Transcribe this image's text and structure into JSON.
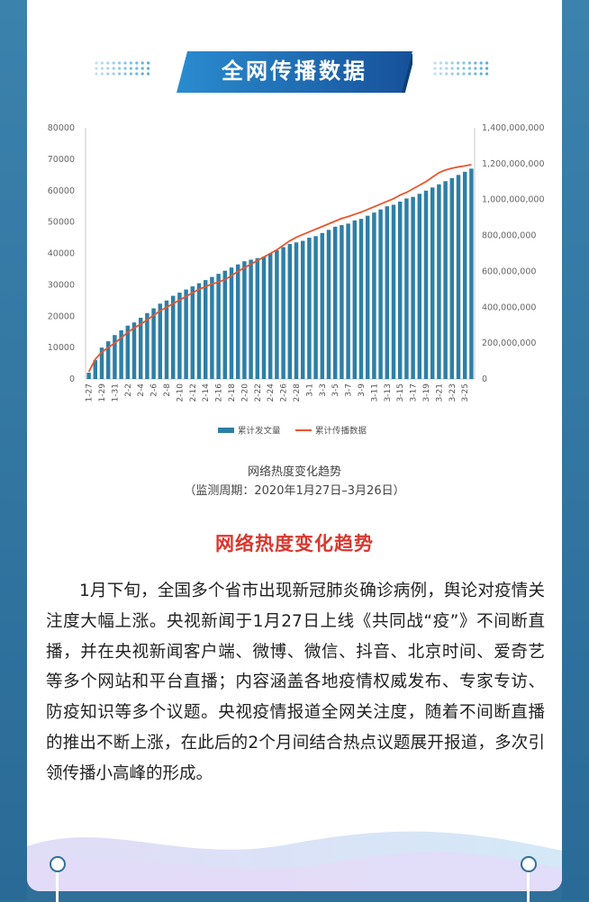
{
  "title": "全网传播数据",
  "chart_data": {
    "type": "bar+line",
    "categories": [
      "1-27",
      "1-28",
      "1-29",
      "1-30",
      "1-31",
      "2-1",
      "2-2",
      "2-3",
      "2-4",
      "2-5",
      "2-6",
      "2-7",
      "2-8",
      "2-9",
      "2-10",
      "2-11",
      "2-12",
      "2-13",
      "2-14",
      "2-15",
      "2-16",
      "2-17",
      "2-18",
      "2-19",
      "2-20",
      "2-21",
      "2-22",
      "2-23",
      "2-24",
      "2-25",
      "2-26",
      "2-27",
      "2-28",
      "2-29",
      "3-1",
      "3-2",
      "3-3",
      "3-4",
      "3-5",
      "3-6",
      "3-7",
      "3-8",
      "3-9",
      "3-10",
      "3-11",
      "3-12",
      "3-13",
      "3-14",
      "3-15",
      "3-16",
      "3-17",
      "3-18",
      "3-19",
      "3-20",
      "3-21",
      "3-22",
      "3-23",
      "3-24",
      "3-25",
      "3-26"
    ],
    "tick_labels": [
      "1-27",
      "1-29",
      "1-31",
      "2-2",
      "2-4",
      "2-6",
      "2-8",
      "2-10",
      "2-12",
      "2-14",
      "2-16",
      "2-18",
      "2-20",
      "2-22",
      "2-24",
      "2-26",
      "2-28",
      "3-1",
      "3-3",
      "3-5",
      "3-7",
      "3-9",
      "3-11",
      "3-13",
      "3-15",
      "3-17",
      "3-19",
      "3-21",
      "3-23",
      "3-25"
    ],
    "series": [
      {
        "name": "累计发文量",
        "type": "bar",
        "axis": "left",
        "color": "#2e7fa6",
        "values": [
          2000,
          6000,
          10000,
          12000,
          14000,
          15500,
          17000,
          18000,
          19500,
          21000,
          22500,
          24000,
          25000,
          26500,
          27500,
          28500,
          29500,
          30500,
          31500,
          32500,
          33500,
          34500,
          35500,
          36500,
          37500,
          38000,
          38500,
          39000,
          40000,
          41000,
          42000,
          43000,
          43500,
          44000,
          45000,
          45500,
          46500,
          47500,
          48500,
          49000,
          49500,
          50500,
          51000,
          52000,
          53000,
          54000,
          55000,
          55500,
          56500,
          57500,
          58000,
          59000,
          60000,
          61000,
          62000,
          63000,
          64000,
          65000,
          66000,
          67000
        ]
      },
      {
        "name": "累计传播数据",
        "type": "line",
        "axis": "right",
        "color": "#e8552f",
        "values": [
          40000000,
          110000000,
          150000000,
          175000000,
          200000000,
          230000000,
          260000000,
          285000000,
          305000000,
          330000000,
          355000000,
          380000000,
          400000000,
          420000000,
          440000000,
          460000000,
          480000000,
          500000000,
          515000000,
          530000000,
          540000000,
          555000000,
          575000000,
          600000000,
          620000000,
          640000000,
          660000000,
          680000000,
          700000000,
          720000000,
          745000000,
          770000000,
          790000000,
          805000000,
          820000000,
          835000000,
          850000000,
          865000000,
          880000000,
          895000000,
          905000000,
          918000000,
          930000000,
          945000000,
          960000000,
          975000000,
          990000000,
          1005000000,
          1025000000,
          1040000000,
          1060000000,
          1080000000,
          1100000000,
          1125000000,
          1150000000,
          1165000000,
          1175000000,
          1182000000,
          1188000000,
          1195000000
        ]
      }
    ],
    "ylim_left": [
      0,
      80000
    ],
    "yticks_left": [
      "0",
      "10000",
      "20000",
      "30000",
      "40000",
      "50000",
      "60000",
      "70000",
      "80000"
    ],
    "ylim_right": [
      0,
      1400000000
    ],
    "yticks_right": [
      "0",
      "200,000,000",
      "400,000,000",
      "600,000,000",
      "800,000,000",
      "1,000,000,000",
      "1,200,000,000",
      "1,400,000,000"
    ],
    "legend_position": "bottom",
    "title": "网络热度变化趋势",
    "subtitle": "（监测周期：2020年1月27日–3月26日）"
  },
  "section": {
    "heading": "网络热度变化趋势",
    "paragraph": "1月下旬，全国多个省市出现新冠肺炎确诊病例，舆论对疫情关注度大幅上涨。央视新闻于1月27日上线《共同战“疫”》不间断直播，并在央视新闻客户端、微博、微信、抖音、北京时间、爱奇艺等多个网站和平台直播；内容涵盖各地疫情权威发布、专家专访、防疫知识等多个议题。央视疫情报道全网关注度，随着不间断直播的推出不断上涨，在此后的2个月间结合热点议题展开报道，多次引领传播小高峰的形成。"
  },
  "colors": {
    "bar": "#2e7fa6",
    "line": "#e8552f",
    "banner": "#1f5fa0",
    "heading": "#d9382e"
  }
}
